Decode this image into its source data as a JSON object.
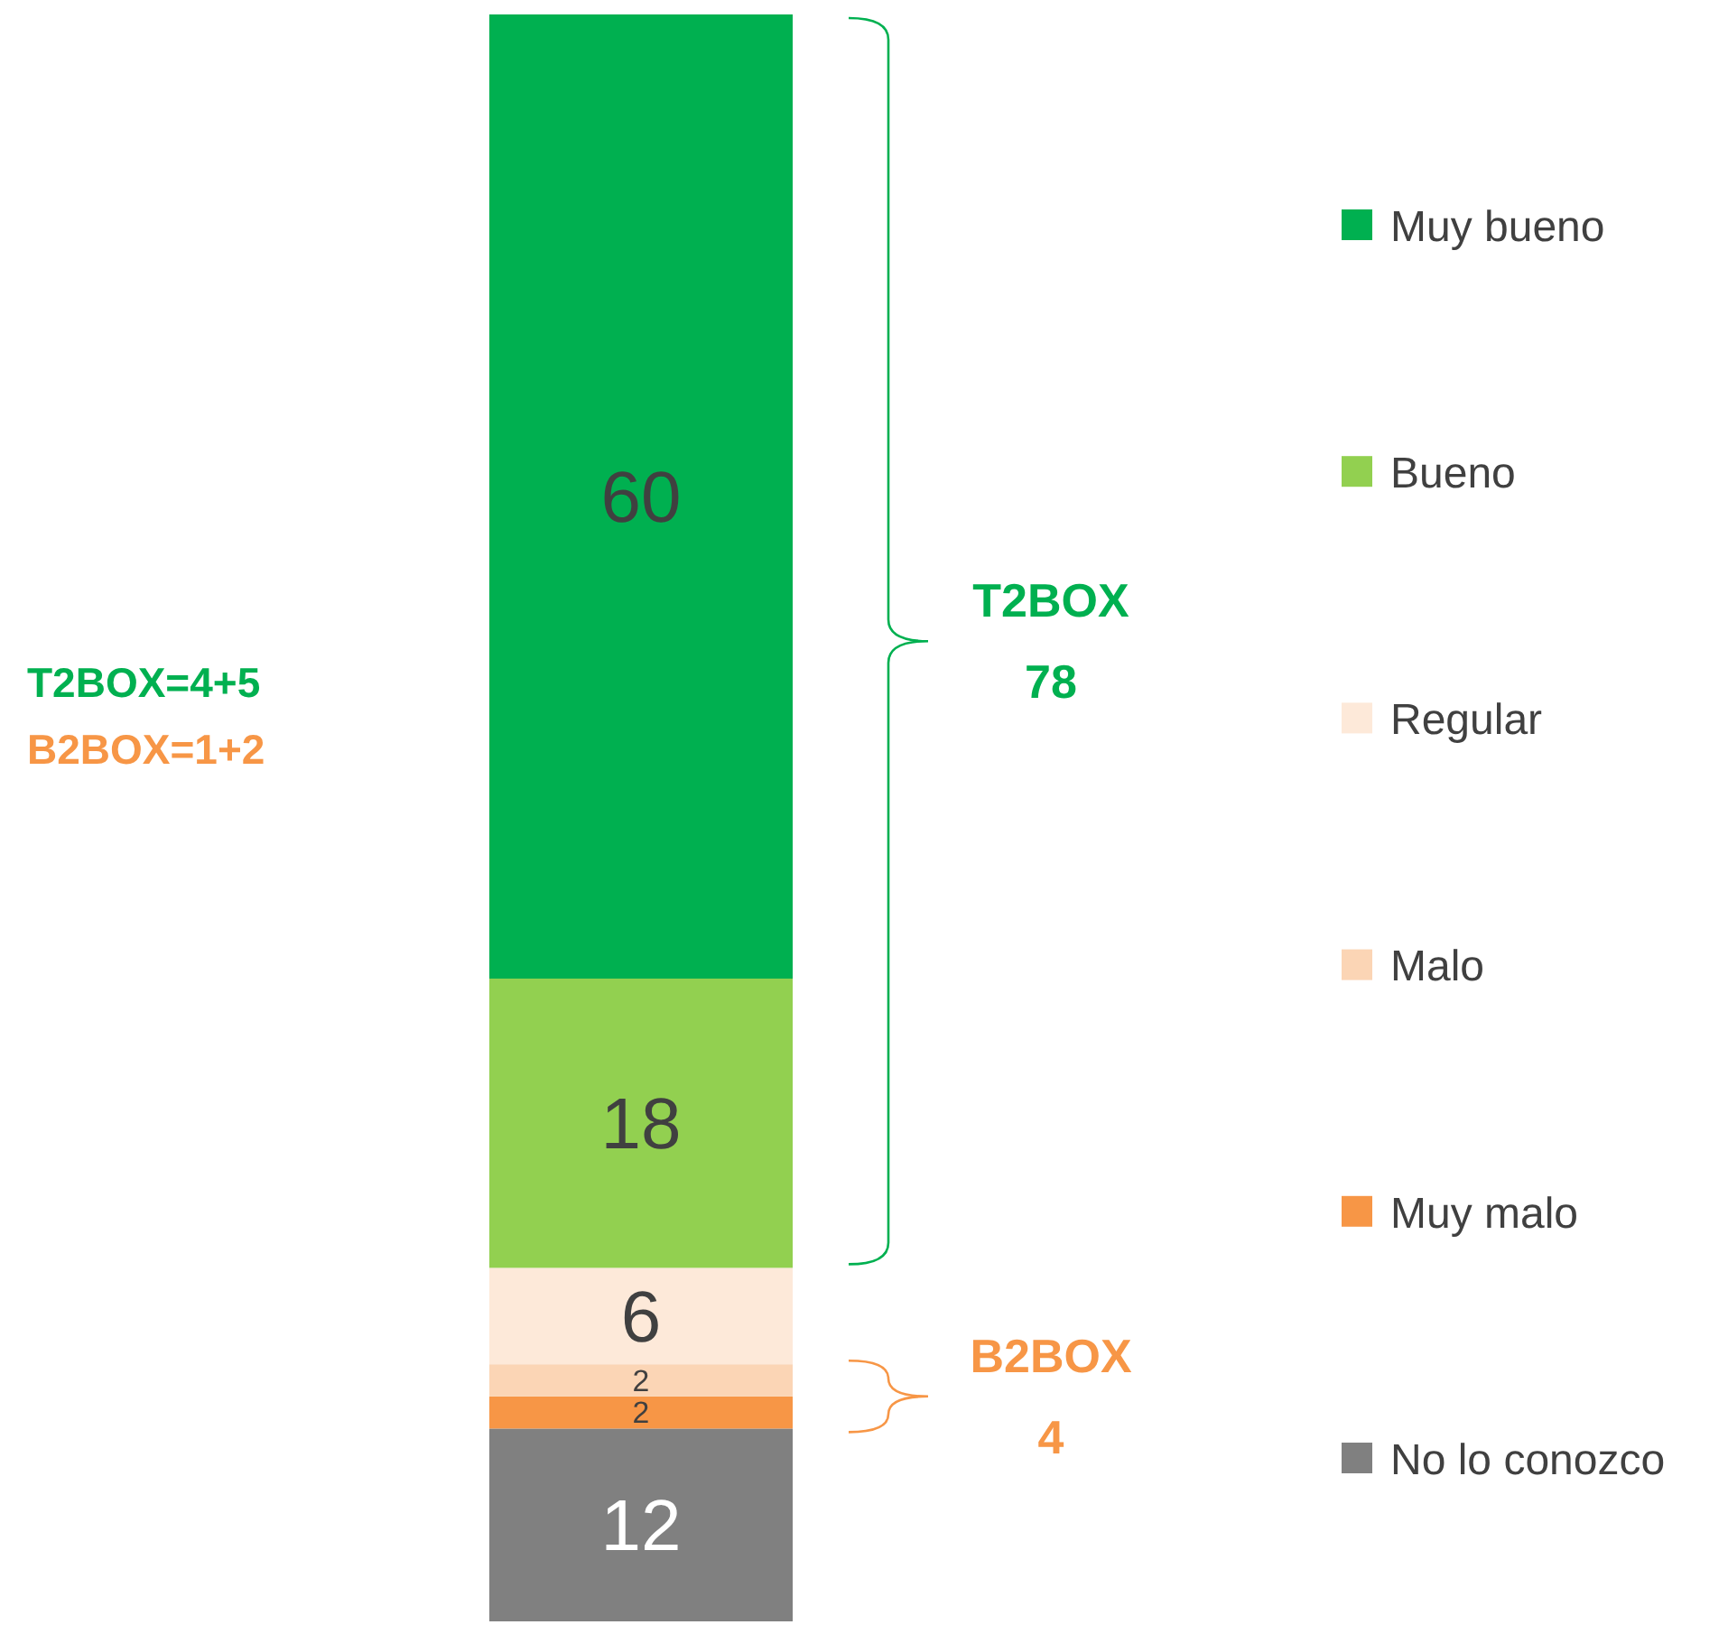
{
  "chart_data": {
    "type": "bar",
    "stacked": true,
    "data_labels": true,
    "legend": "right",
    "categories": [
      null
    ],
    "series": [
      {
        "name": "No lo conozco",
        "color": "#808080",
        "values": [
          12
        ]
      },
      {
        "name": "Muy malo",
        "color": "#f79646",
        "values": [
          2
        ]
      },
      {
        "name": "Malo",
        "color": "#fbd5b5",
        "values": [
          2
        ]
      },
      {
        "name": "Regular",
        "color": "#fde9d9",
        "values": [
          6
        ]
      },
      {
        "name": "Bueno",
        "color": "#92d050",
        "values": [
          18
        ]
      },
      {
        "name": "Muy bueno",
        "color": "#00b050",
        "values": [
          60
        ]
      }
    ],
    "annotations": [
      "T2BOX=4+5",
      "B2BOX=1+2",
      "T2BOX\n78",
      "B2BOX\n4"
    ]
  }
}
